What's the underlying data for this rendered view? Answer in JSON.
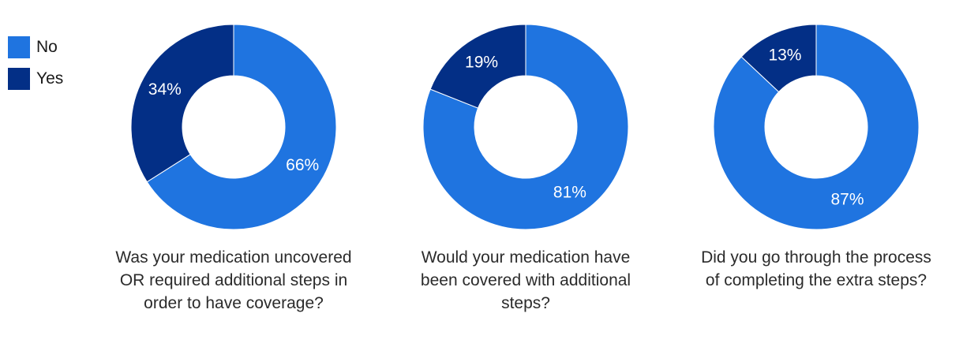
{
  "legend": [
    {
      "label": "No",
      "color": "#1f74e0"
    },
    {
      "label": "Yes",
      "color": "#032f86"
    }
  ],
  "chart_data": [
    {
      "type": "pie",
      "title": "Was your medication uncovered OR required additional steps in order to have coverage?",
      "categories": [
        "No",
        "Yes"
      ],
      "values": [
        66,
        34
      ],
      "labels": [
        "66%",
        "34%"
      ]
    },
    {
      "type": "pie",
      "title": "Would your medication have been covered with additional steps?",
      "categories": [
        "No",
        "Yes"
      ],
      "values": [
        81,
        19
      ],
      "labels": [
        "81%",
        "19%"
      ]
    },
    {
      "type": "pie",
      "title": "Did you go through the process of completing the extra steps?",
      "categories": [
        "No",
        "Yes"
      ],
      "values": [
        87,
        13
      ],
      "labels": [
        "87%",
        "13%"
      ]
    }
  ]
}
